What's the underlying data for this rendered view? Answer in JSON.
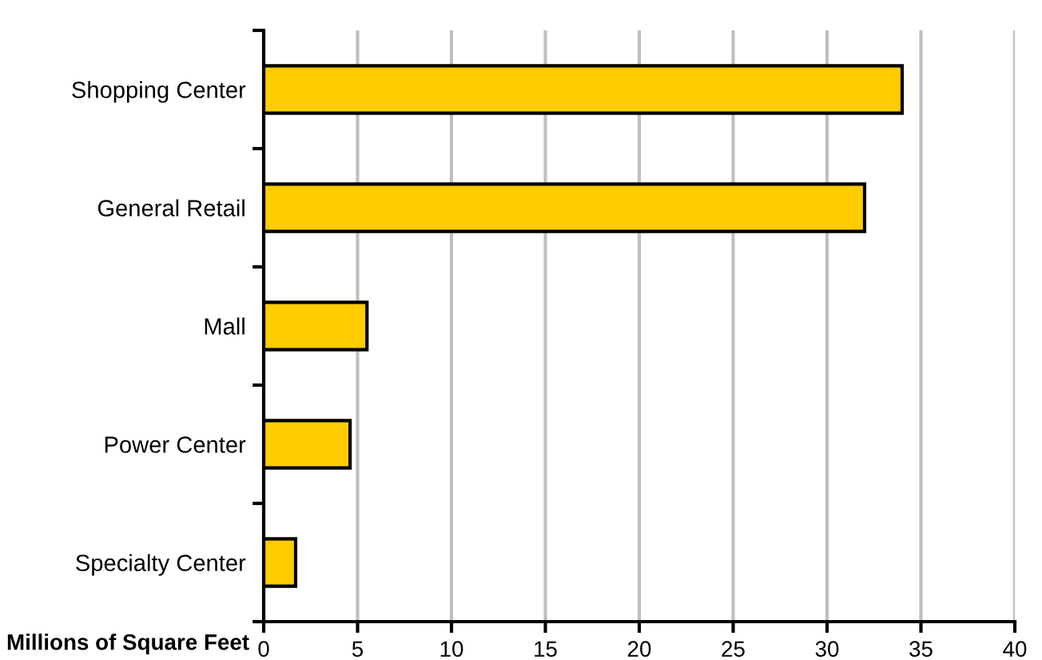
{
  "chart_data": {
    "type": "bar",
    "orientation": "horizontal",
    "xlabel": "Millions of Square Feet",
    "categories": [
      "Shopping Center",
      "General Retail",
      "Mall",
      "Power Center",
      "Specialty Center"
    ],
    "values": [
      34.0,
      32.0,
      5.5,
      4.6,
      1.7
    ],
    "color": "#ffcc00",
    "xlim": [
      0,
      40
    ],
    "xticks": [
      0,
      5,
      10,
      15,
      20,
      25,
      30,
      35,
      40
    ],
    "grid": "x"
  }
}
